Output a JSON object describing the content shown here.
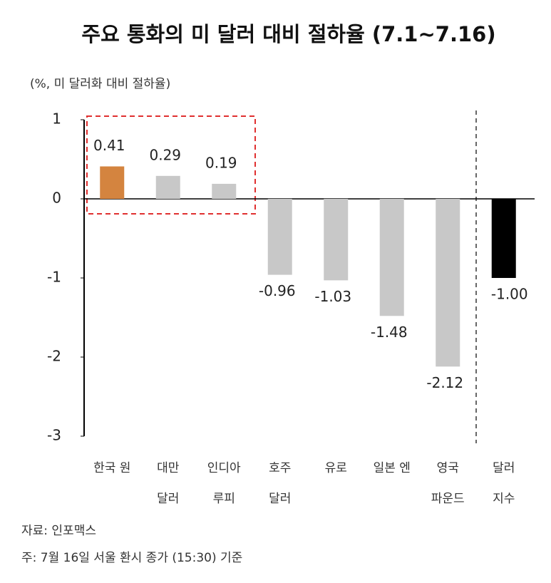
{
  "chart_data": {
    "type": "bar",
    "title": "주요 통화의 미 달러 대비 절하율 (7.1~7.16)",
    "subtitle": "(%, 미 달러화 대비 절하율)",
    "categories": [
      [
        "한국 원"
      ],
      [
        "대만",
        "달러"
      ],
      [
        "인디아",
        "루피"
      ],
      [
        "호주",
        "달러"
      ],
      [
        "유로"
      ],
      [
        "일본 엔"
      ],
      [
        "영국",
        "파운드"
      ],
      [
        "달러",
        "지수"
      ]
    ],
    "values": [
      0.41,
      0.29,
      0.19,
      -0.96,
      -1.03,
      -1.48,
      -2.12,
      -1.0
    ],
    "value_labels": [
      "0.41",
      "0.29",
      "0.19",
      "-0.96",
      "-1.03",
      "-1.48",
      "-2.12",
      "-1.00"
    ],
    "colors": [
      "#d4843f",
      "#c8c8c8",
      "#c8c8c8",
      "#c8c8c8",
      "#c8c8c8",
      "#c8c8c8",
      "#c8c8c8",
      "#000000"
    ],
    "ylim": [
      -3,
      1
    ],
    "yticks": [
      1,
      0,
      -1,
      -2,
      -3
    ],
    "grid": false,
    "source": "자료: 인포맥스",
    "note": "주: 7월 16일 서울 환시 종가 (15:30) 기준"
  }
}
